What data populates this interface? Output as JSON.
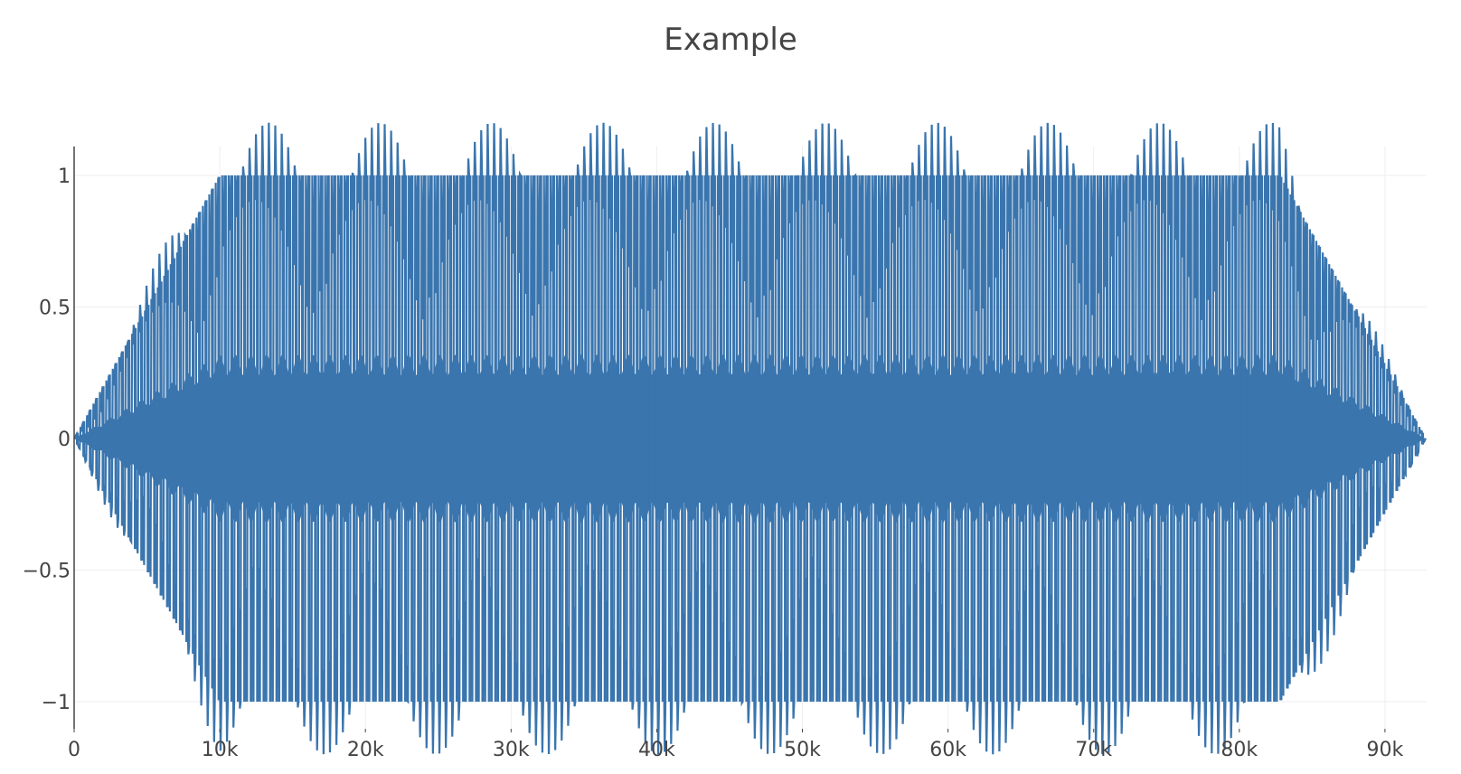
{
  "colors": {
    "series": "#3a75ae",
    "grid": "#eeeeee",
    "axis": "#444444",
    "background": "#ffffff"
  },
  "chart_data": {
    "type": "line",
    "title": "Example",
    "xlabel": "",
    "ylabel": "",
    "xlim": [
      0,
      92800
    ],
    "ylim": [
      -1.1,
      1.1
    ],
    "grid": true,
    "legend": "none",
    "x_ticks": [
      {
        "value": 0,
        "label": "0"
      },
      {
        "value": 10000,
        "label": "10k"
      },
      {
        "value": 20000,
        "label": "20k"
      },
      {
        "value": 30000,
        "label": "30k"
      },
      {
        "value": 40000,
        "label": "40k"
      },
      {
        "value": 50000,
        "label": "50k"
      },
      {
        "value": 60000,
        "label": "60k"
      },
      {
        "value": 70000,
        "label": "70k"
      },
      {
        "value": 80000,
        "label": "80k"
      },
      {
        "value": 90000,
        "label": "90k"
      }
    ],
    "y_ticks": [
      {
        "value": 1,
        "label": "1"
      },
      {
        "value": 0.5,
        "label": "0.5"
      },
      {
        "value": 0,
        "label": "0"
      },
      {
        "value": -0.5,
        "label": "−0.5"
      },
      {
        "value": -1,
        "label": "−1"
      }
    ],
    "series": [
      {
        "description_of_shape": "",
        "x_start": 0,
        "x_end": 92800,
        "envelope": [
          {
            "x": 0,
            "amplitude": 0
          },
          {
            "x": 10000,
            "amplitude": 1
          },
          {
            "x": 82800,
            "amplitude": 1
          },
          {
            "x": 92800,
            "amplitude": 0
          }
        ],
        "cycles_visible": 210
      }
    ]
  }
}
